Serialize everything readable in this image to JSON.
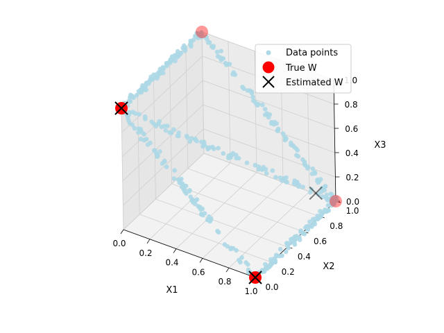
{
  "chart_data": {
    "type": "scatter",
    "projection": "3d",
    "title": "",
    "xlabel": "X1",
    "ylabel": "X2",
    "zlabel": "X3",
    "xlim": [
      0,
      1
    ],
    "ylim": [
      0,
      1
    ],
    "zlim": [
      0,
      1
    ],
    "xticks": [
      "0.0",
      "0.2",
      "0.4",
      "0.6",
      "0.8",
      "1.0"
    ],
    "yticks": [
      "0.0",
      "0.2",
      "0.4",
      "0.6",
      "0.8",
      "1.0"
    ],
    "zticks": [
      "0.0",
      "0.2",
      "0.4",
      "0.6",
      "0.8",
      "1.0"
    ],
    "grid": true,
    "legend_position": "top-right",
    "legend": {
      "data_points": "Data points",
      "true_w": "True W",
      "estimated_w": "Estimated W"
    },
    "colors": {
      "data_points": "#add8e6",
      "true_w": "#ff0000",
      "estimated_w": "#000000",
      "pane": "#f2f2f2"
    },
    "true_w": [
      {
        "x": 0.0,
        "y": 0.0,
        "z": 1.0
      },
      {
        "x": 1.0,
        "y": 0.0,
        "z": 0.0
      },
      {
        "x": 0.0,
        "y": 1.0,
        "z": 1.0
      },
      {
        "x": 1.0,
        "y": 1.0,
        "z": 0.0
      }
    ],
    "estimated_w": [
      {
        "x": 0.0,
        "y": 0.0,
        "z": 1.0
      },
      {
        "x": 1.0,
        "y": 0.0,
        "z": 0.0
      },
      {
        "x": 0.88,
        "y": 0.95,
        "z": 0.05
      }
    ],
    "data_points_description": "points sampled along edges connecting the four True W vertices",
    "data_point_edges": [
      [
        0,
        1
      ],
      [
        0,
        2
      ],
      [
        1,
        3
      ],
      [
        2,
        3
      ],
      [
        0,
        3
      ]
    ]
  }
}
